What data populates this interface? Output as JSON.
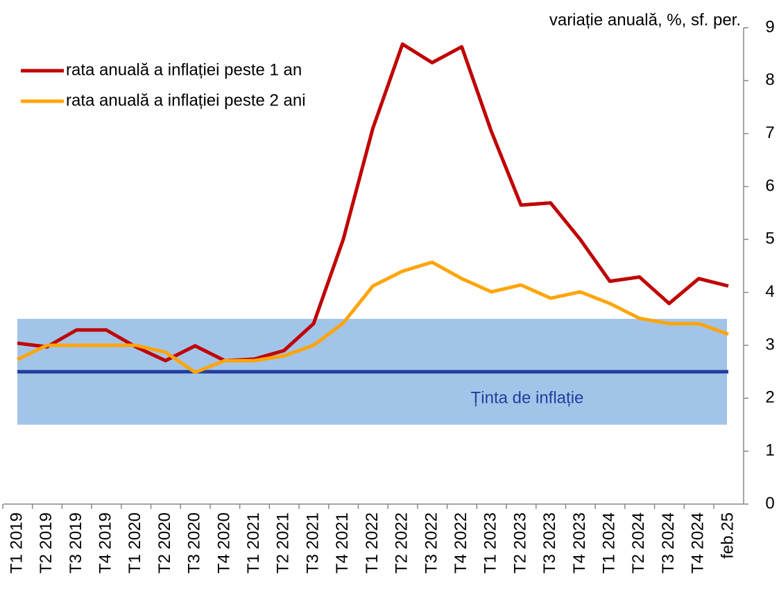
{
  "chart_data": {
    "type": "line",
    "y_axis_label": "variație anuală, %, sf. per.",
    "categories": [
      "T1 2019",
      "T2 2019",
      "T3 2019",
      "T4 2019",
      "T1 2020",
      "T2 2020",
      "T3 2020",
      "T4 2020",
      "T1 2021",
      "T2 2021",
      "T3 2021",
      "T4 2021",
      "T1 2022",
      "T2 2022",
      "T3 2022",
      "T4 2022",
      "T1 2023",
      "T2 2023",
      "T3 2023",
      "T4 2023",
      "T1 2024",
      "T2 2024",
      "T3 2024",
      "T4 2024",
      "feb.25"
    ],
    "series": [
      {
        "name": "rata anuală a inflației peste 1 an",
        "color": "#c00000",
        "values": [
          3.04,
          2.97,
          3.29,
          3.29,
          2.97,
          2.71,
          2.99,
          2.71,
          2.74,
          2.9,
          3.41,
          5.0,
          7.1,
          8.69,
          8.34,
          8.64,
          7.04,
          5.65,
          5.69,
          5.0,
          4.21,
          4.29,
          3.79,
          4.26,
          4.12
        ]
      },
      {
        "name": "rata anuală a inflației peste 2 ani",
        "color": "#ffa50a",
        "values": [
          2.73,
          3.0,
          3.0,
          3.0,
          3.0,
          2.87,
          2.49,
          2.71,
          2.71,
          2.8,
          3.0,
          3.42,
          4.12,
          4.4,
          4.57,
          4.26,
          4.01,
          4.14,
          3.89,
          4.01,
          3.79,
          3.51,
          3.41,
          3.41,
          3.21
        ]
      }
    ],
    "target": 2.5,
    "target_color": "#1f3f9e",
    "band": [
      1.5,
      3.5
    ],
    "band_color": "#a3c4e9",
    "annotation": "Ținta de inflație",
    "ylim": [
      0,
      9
    ],
    "yticks": [
      0,
      1,
      2,
      3,
      4,
      5,
      6,
      7,
      8,
      9
    ],
    "y_axis_side": "right"
  }
}
